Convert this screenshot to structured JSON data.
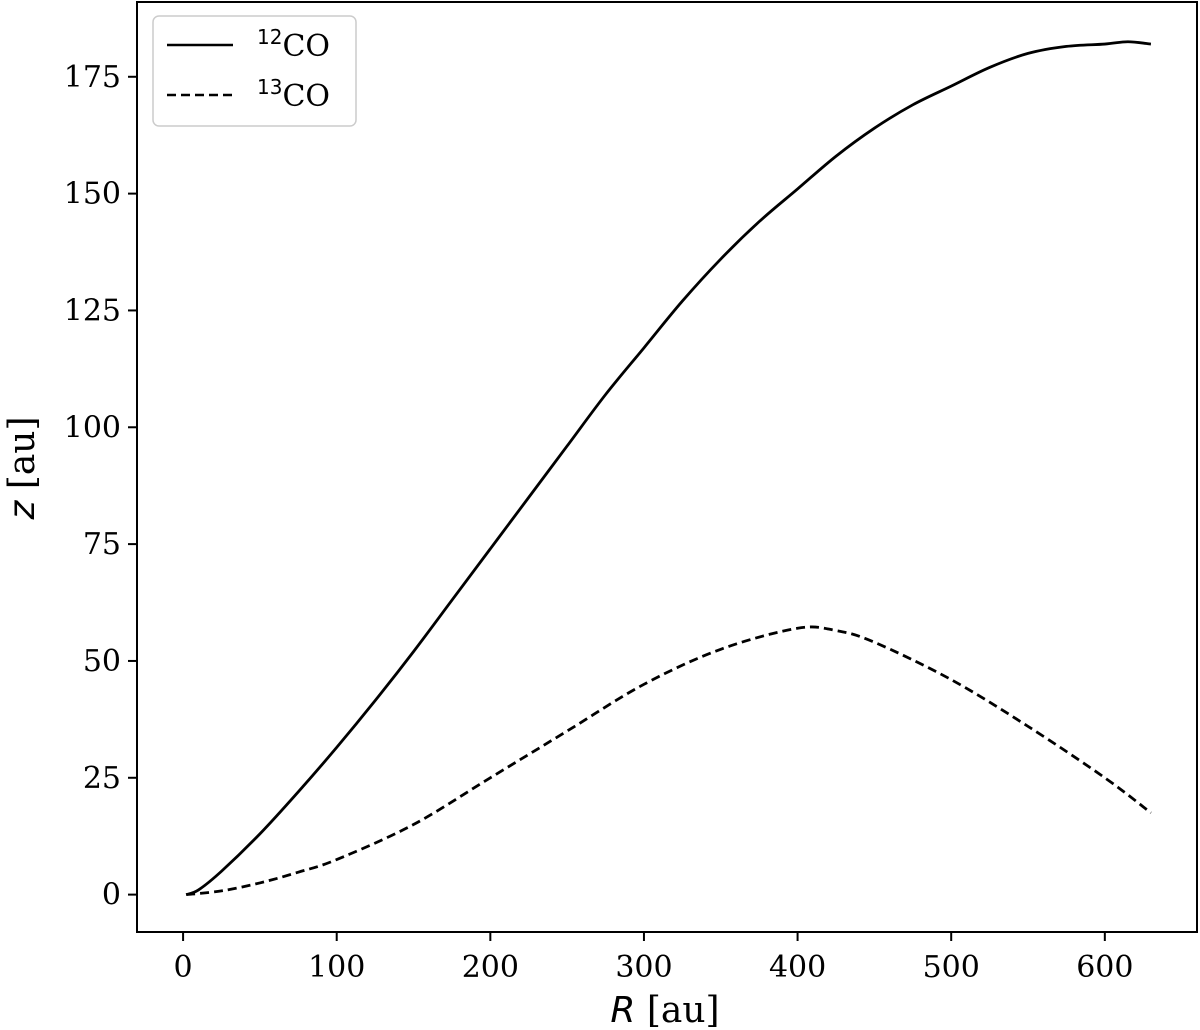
{
  "chart_data": {
    "type": "line",
    "xlabel": {
      "var": "R",
      "unit": " [au]"
    },
    "ylabel": {
      "var": "z",
      "unit": " [au]"
    },
    "xlim": [
      -30,
      660
    ],
    "ylim": [
      -8,
      191
    ],
    "xticks": [
      "0",
      "100",
      "200",
      "300",
      "400",
      "500",
      "600"
    ],
    "yticks": [
      "0",
      "25",
      "50",
      "75",
      "100",
      "125",
      "150",
      "175"
    ],
    "xtick_values": [
      0,
      100,
      200,
      300,
      400,
      500,
      600
    ],
    "ytick_values": [
      0,
      25,
      50,
      75,
      100,
      125,
      150,
      175
    ],
    "grid": false,
    "legend_position": "top-left",
    "series": [
      {
        "name": "CO",
        "name_sup": "12",
        "style": "solid",
        "color": "#000000",
        "x": [
          2,
          10,
          25,
          50,
          75,
          100,
          125,
          150,
          175,
          200,
          225,
          250,
          275,
          300,
          325,
          350,
          375,
          400,
          425,
          450,
          475,
          500,
          525,
          550,
          575,
          600,
          615,
          630
        ],
        "y": [
          0,
          1,
          5,
          13,
          22,
          31.5,
          41.5,
          52,
          63,
          74,
          85,
          96,
          107,
          117,
          127,
          136,
          144,
          151,
          158,
          164,
          169,
          173,
          177,
          180,
          181.5,
          182,
          182.5,
          182
        ]
      },
      {
        "name": "CO",
        "name_sup": "13",
        "style": "dashed",
        "color": "#000000",
        "x": [
          2,
          25,
          50,
          75,
          100,
          150,
          200,
          250,
          300,
          350,
          400,
          425,
          450,
          500,
          550,
          600,
          630
        ],
        "y": [
          0,
          0.8,
          2.5,
          4.8,
          7.5,
          15,
          25,
          35,
          45,
          52.5,
          57,
          56.5,
          54,
          46,
          36,
          25,
          17.5
        ]
      }
    ]
  }
}
